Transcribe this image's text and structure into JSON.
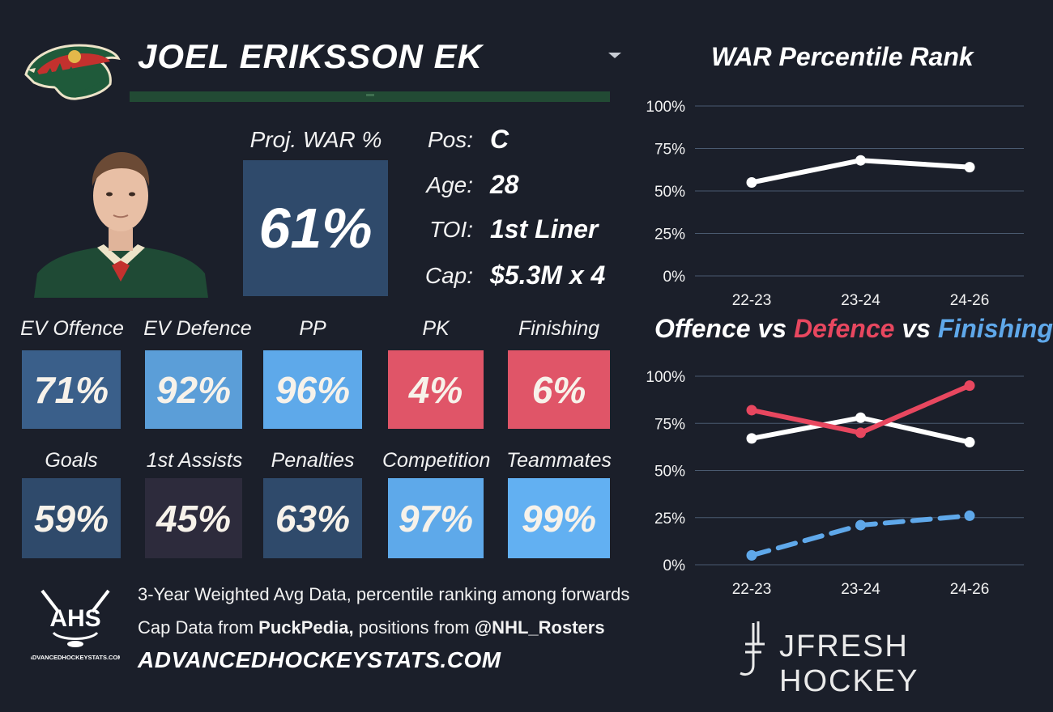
{
  "header": {
    "player_name": "JOEL ERIKSSON EK"
  },
  "projection": {
    "label": "Proj. WAR %",
    "value": "61%"
  },
  "info": [
    {
      "label": "Pos:",
      "value": "C"
    },
    {
      "label": "Age:",
      "value": "28"
    },
    {
      "label": "TOI:",
      "value": "1st Liner"
    },
    {
      "label": "Cap:",
      "value": "$5.3M x 4"
    }
  ],
  "metrics_row1": [
    {
      "label": "EV Offence",
      "value": "71%",
      "color": "#3a5f8a"
    },
    {
      "label": "EV Defence",
      "value": "92%",
      "color": "#5b9ed8"
    },
    {
      "label": "PP",
      "value": "96%",
      "color": "#5ea9ea"
    },
    {
      "label": "PK",
      "value": "4%",
      "color": "#e05568"
    },
    {
      "label": "Finishing",
      "value": "6%",
      "color": "#e05568"
    }
  ],
  "metrics_row2": [
    {
      "label": "Goals",
      "value": "59%",
      "color": "#2f4a6b"
    },
    {
      "label": "1st Assists",
      "value": "45%",
      "color": "#2d2b3c"
    },
    {
      "label": "Penalties",
      "value": "63%",
      "color": "#2f4a6b"
    },
    {
      "label": "Competition",
      "value": "97%",
      "color": "#5ea9ea"
    },
    {
      "label": "Teammates",
      "value": "99%",
      "color": "#62b0f2"
    }
  ],
  "footer": {
    "line1": "3-Year Weighted Avg Data, percentile ranking among forwards",
    "line2_prefix": "Cap Data from ",
    "line2_source": "PuckPedia,",
    "line2_mid": " positions from ",
    "line2_handle": "@NHL_Rosters",
    "site": "ADVANCEDHOCKEYSTATS.COM",
    "ahs_logo_text": "AHS",
    "ahs_logo_subtext": "ADVANCEDHOCKEYSTATS.COM",
    "brand": "JFRESH HOCKEY"
  },
  "colors": {
    "background": "#1b1f2a",
    "offence": "#ffffff",
    "defence": "#e8475f",
    "finishing": "#5fa8ea",
    "gridline": "#4a5a70"
  },
  "chart_data": [
    {
      "type": "line",
      "title": "WAR Percentile Rank",
      "categories": [
        "22-23",
        "23-24",
        "24-26"
      ],
      "series": [
        {
          "values": [
            55,
            68,
            64
          ],
          "color": "#ffffff",
          "dashed": false
        }
      ],
      "ylim": [
        0,
        100
      ],
      "yticks": [
        "0%",
        "25%",
        "50%",
        "75%",
        "100%"
      ],
      "grid": true
    },
    {
      "type": "line",
      "title_parts": [
        "Offence",
        " vs ",
        "Defence",
        " vs ",
        "Finishing"
      ],
      "categories": [
        "22-23",
        "23-24",
        "24-26"
      ],
      "series": [
        {
          "name": "Offence",
          "values": [
            67,
            78,
            65
          ],
          "color": "#ffffff",
          "dashed": false
        },
        {
          "name": "Defence",
          "values": [
            82,
            70,
            95
          ],
          "color": "#e8475f",
          "dashed": false
        },
        {
          "name": "Finishing",
          "values": [
            5,
            21,
            26
          ],
          "color": "#5fa8ea",
          "dashed": true
        }
      ],
      "ylim": [
        0,
        100
      ],
      "yticks": [
        "0%",
        "25%",
        "50%",
        "75%",
        "100%"
      ],
      "grid": true
    }
  ]
}
